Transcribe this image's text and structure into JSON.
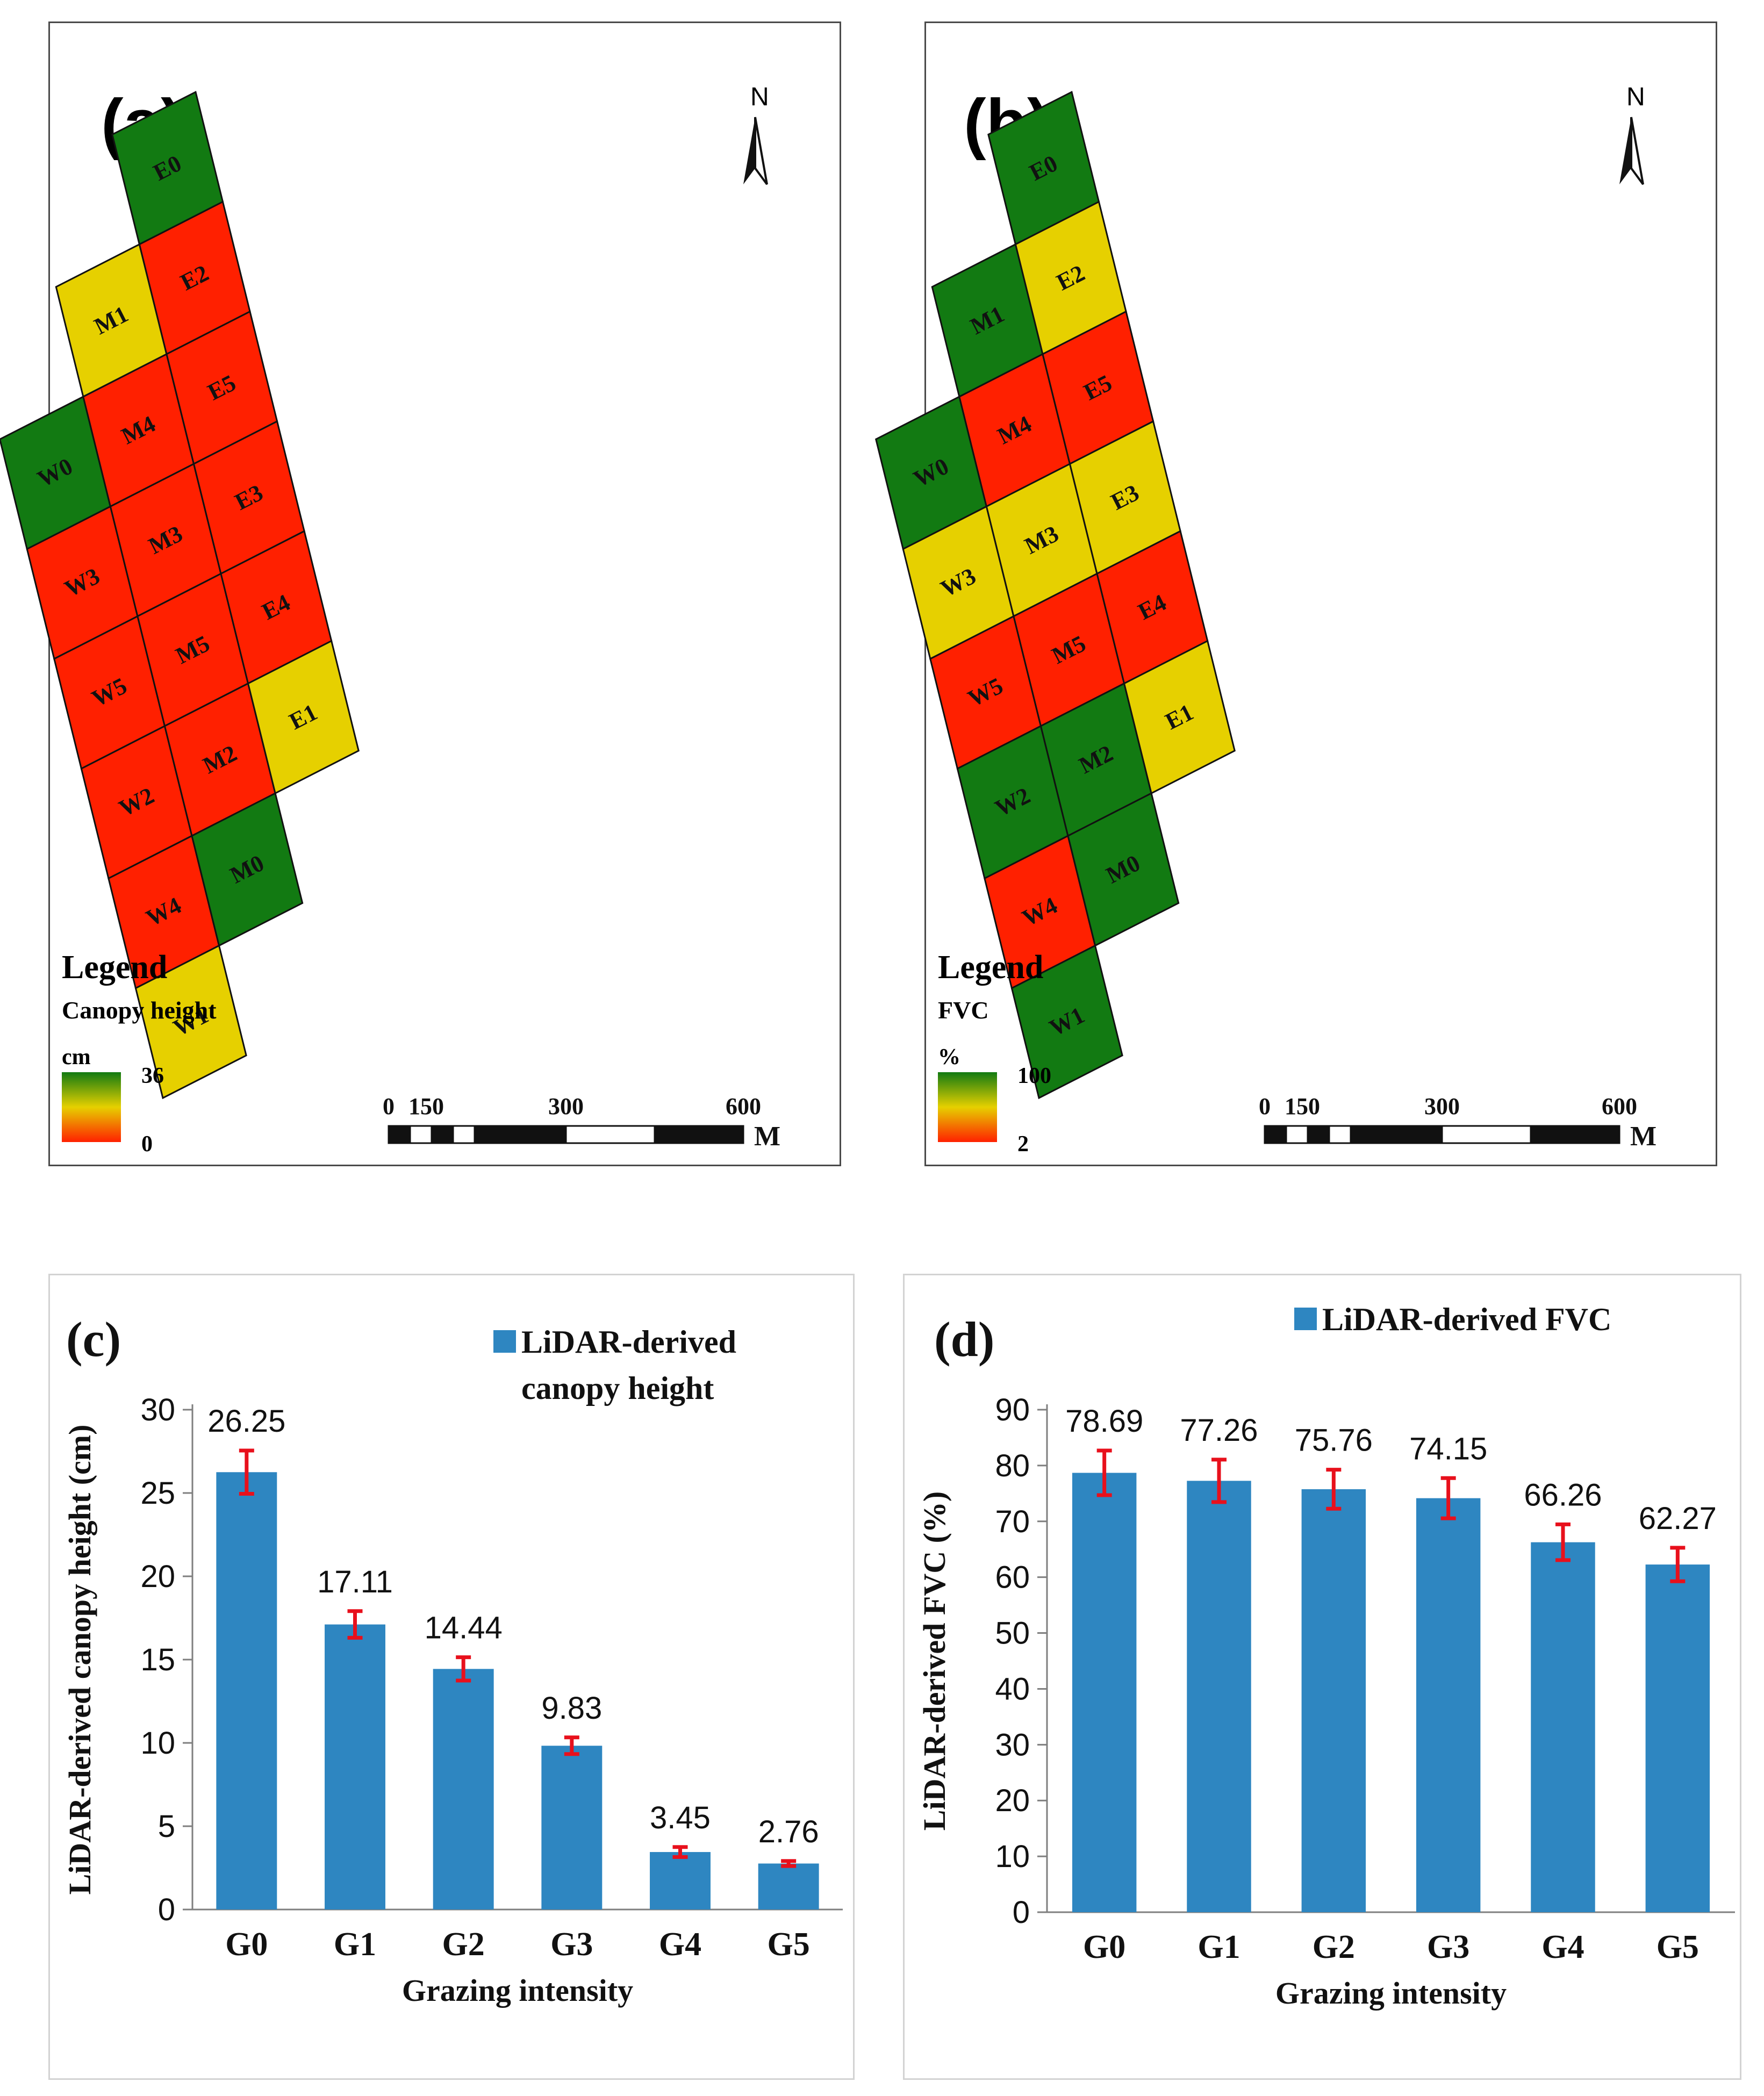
{
  "maps": {
    "a": {
      "label": "(a)",
      "north": "N",
      "legend_title": "Legend",
      "legend_variable": "Canopy height",
      "legend_unit": "cm",
      "legend_max": "36",
      "legend_min": "0",
      "scale_ticks": [
        "0",
        "150",
        "300",
        "600"
      ],
      "scale_unit": "M",
      "plots": [
        {
          "name": "E0",
          "value": "high"
        },
        {
          "name": "M1",
          "value": "mid"
        },
        {
          "name": "E2",
          "value": "low"
        },
        {
          "name": "W0",
          "value": "high"
        },
        {
          "name": "M4",
          "value": "low"
        },
        {
          "name": "E5",
          "value": "low"
        },
        {
          "name": "W3",
          "value": "low"
        },
        {
          "name": "M3",
          "value": "low"
        },
        {
          "name": "E3",
          "value": "low"
        },
        {
          "name": "W5",
          "value": "low"
        },
        {
          "name": "M5",
          "value": "low"
        },
        {
          "name": "E4",
          "value": "low"
        },
        {
          "name": "W2",
          "value": "low"
        },
        {
          "name": "M2",
          "value": "low"
        },
        {
          "name": "E1",
          "value": "mid"
        },
        {
          "name": "W4",
          "value": "low"
        },
        {
          "name": "M0",
          "value": "high"
        },
        {
          "name": "W1",
          "value": "mid"
        }
      ]
    },
    "b": {
      "label": "(b)",
      "north": "N",
      "legend_title": "Legend",
      "legend_variable": "FVC",
      "legend_unit": "%",
      "legend_max": "100",
      "legend_min": "2",
      "scale_ticks": [
        "0",
        "150",
        "300",
        "600"
      ],
      "scale_unit": "M",
      "plots": [
        {
          "name": "E0",
          "value": "high"
        },
        {
          "name": "M1",
          "value": "high"
        },
        {
          "name": "E2",
          "value": "mid"
        },
        {
          "name": "W0",
          "value": "high"
        },
        {
          "name": "M4",
          "value": "low"
        },
        {
          "name": "E5",
          "value": "low"
        },
        {
          "name": "W3",
          "value": "mid"
        },
        {
          "name": "M3",
          "value": "mid"
        },
        {
          "name": "E3",
          "value": "mid"
        },
        {
          "name": "W5",
          "value": "low"
        },
        {
          "name": "M5",
          "value": "low"
        },
        {
          "name": "E4",
          "value": "low"
        },
        {
          "name": "W2",
          "value": "high"
        },
        {
          "name": "M2",
          "value": "high"
        },
        {
          "name": "E1",
          "value": "mid"
        },
        {
          "name": "W4",
          "value": "low"
        },
        {
          "name": "M0",
          "value": "high"
        },
        {
          "name": "W1",
          "value": "high"
        }
      ]
    }
  },
  "colors": {
    "bar": "#2e86c1",
    "error": "#e8101c",
    "axis": "#7f7f7f",
    "map_high": "#127a12",
    "map_mid": "#e6d000",
    "map_low": "#ff2000"
  },
  "chart_data": [
    {
      "type": "bar",
      "panel_label": "(c)",
      "categories": [
        "G0",
        "G1",
        "G2",
        "G3",
        "G4",
        "G5"
      ],
      "values": [
        26.25,
        17.11,
        14.44,
        9.83,
        3.45,
        2.76
      ],
      "value_labels": [
        "26.25",
        "17.11",
        "14.44",
        "9.83",
        "3.45",
        "2.76"
      ],
      "errors": [
        1.3,
        0.8,
        0.7,
        0.5,
        0.3,
        0.15
      ],
      "legend_line1": "LiDAR-derived",
      "legend_line2": "canopy height",
      "xlabel": "Grazing intensity",
      "ylabel": "LiDAR-derived canopy height (cm)",
      "ylim": [
        0,
        30
      ],
      "yticks": [
        0,
        5,
        10,
        15,
        20,
        25,
        30
      ]
    },
    {
      "type": "bar",
      "panel_label": "(d)",
      "categories": [
        "G0",
        "G1",
        "G2",
        "G3",
        "G4",
        "G5"
      ],
      "values": [
        78.69,
        77.26,
        75.76,
        74.15,
        66.26,
        62.27
      ],
      "value_labels": [
        "78.69",
        "77.26",
        "75.76",
        "74.15",
        "66.26",
        "62.27"
      ],
      "errors": [
        4.0,
        3.8,
        3.5,
        3.6,
        3.2,
        3.0
      ],
      "legend_line1": "LiDAR-derived FVC",
      "xlabel": "Grazing intensity",
      "ylabel": "LiDAR-derived FVC (%)",
      "ylim": [
        0,
        90
      ],
      "yticks": [
        0,
        10,
        20,
        30,
        40,
        50,
        60,
        70,
        80,
        90
      ]
    }
  ]
}
